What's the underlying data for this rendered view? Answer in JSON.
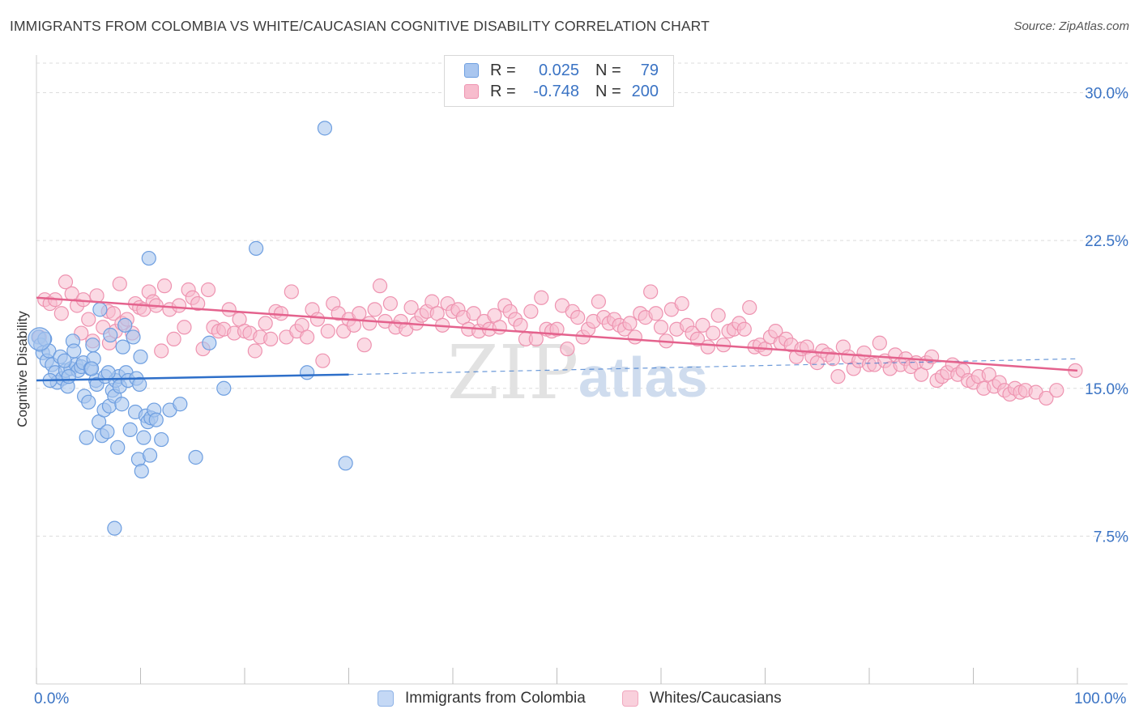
{
  "header": {
    "title": "IMMIGRANTS FROM COLOMBIA VS WHITE/CAUCASIAN COGNITIVE DISABILITY CORRELATION CHART",
    "source": "Source: ZipAtlas.com"
  },
  "legend": {
    "series": [
      {
        "r_label": "R =",
        "r_value": "0.025",
        "n_label": "N =",
        "n_value": "79"
      },
      {
        "r_label": "R =",
        "r_value": "-0.748",
        "n_label": "N =",
        "n_value": "200"
      }
    ],
    "bottom": [
      "Immigrants from Colombia",
      "Whites/Caucasians"
    ]
  },
  "watermark": {
    "zip": "ZIP",
    "atlas": "atlas"
  },
  "colors": {
    "blue_fill": "#a9c6ef",
    "blue_stroke": "#6d9ee0",
    "blue_line": "#2e6fc9",
    "pink_fill": "#f7bccd",
    "pink_stroke": "#ee93b0",
    "pink_line": "#e4628d",
    "tick_label": "#3a73c4",
    "grid": "#dcdcdc"
  },
  "chart_data": {
    "type": "scatter",
    "title": "IMMIGRANTS FROM COLOMBIA VS WHITE/CAUCASIAN COGNITIVE DISABILITY CORRELATION CHART",
    "ylabel": "Cognitive Disability",
    "xlabel": "",
    "x_tick_labels": [
      "0.0%",
      "100.0%"
    ],
    "y_tick_labels": [
      "7.5%",
      "15.0%",
      "22.5%",
      "30.0%"
    ],
    "y_ticks": [
      7.5,
      15.0,
      22.5,
      30.0
    ],
    "xlim": [
      0,
      100
    ],
    "ylim": [
      0,
      31.5
    ],
    "grid": "horizontal dashed",
    "series": [
      {
        "name": "Immigrants from Colombia",
        "color": "#6d9ee0",
        "trend": {
          "x": [
            0,
            30
          ],
          "y": [
            15.4,
            15.7
          ],
          "dashed_to": [
            100,
            16.5
          ]
        },
        "points": [
          [
            0.2,
            17.6
          ],
          [
            0.4,
            17.2
          ],
          [
            0.6,
            16.8
          ],
          [
            0.8,
            17.5
          ],
          [
            1.0,
            16.4
          ],
          [
            1.2,
            16.9
          ],
          [
            1.5,
            16.2
          ],
          [
            1.8,
            15.8
          ],
          [
            2.0,
            15.3
          ],
          [
            2.3,
            16.6
          ],
          [
            2.5,
            15.5
          ],
          [
            2.8,
            15.9
          ],
          [
            3.0,
            15.1
          ],
          [
            3.3,
            16.0
          ],
          [
            3.5,
            17.4
          ],
          [
            3.6,
            16.9
          ],
          [
            3.8,
            16.2
          ],
          [
            4.0,
            15.9
          ],
          [
            4.3,
            16.1
          ],
          [
            4.5,
            16.3
          ],
          [
            4.6,
            14.6
          ],
          [
            4.8,
            12.5
          ],
          [
            5.0,
            14.3
          ],
          [
            5.2,
            16.0
          ],
          [
            5.4,
            17.2
          ],
          [
            5.5,
            16.5
          ],
          [
            5.7,
            15.4
          ],
          [
            5.8,
            15.2
          ],
          [
            6.0,
            13.3
          ],
          [
            6.1,
            19.0
          ],
          [
            6.3,
            12.6
          ],
          [
            6.5,
            13.9
          ],
          [
            6.6,
            15.6
          ],
          [
            6.8,
            12.8
          ],
          [
            7.0,
            14.1
          ],
          [
            7.1,
            17.7
          ],
          [
            7.3,
            14.9
          ],
          [
            7.5,
            14.6
          ],
          [
            7.6,
            15.4
          ],
          [
            7.8,
            12.0
          ],
          [
            7.5,
            7.9
          ],
          [
            7.9,
            15.6
          ],
          [
            8.0,
            15.1
          ],
          [
            8.3,
            17.1
          ],
          [
            8.5,
            18.2
          ],
          [
            8.6,
            15.8
          ],
          [
            8.8,
            15.4
          ],
          [
            9.0,
            12.9
          ],
          [
            9.3,
            17.6
          ],
          [
            9.5,
            13.8
          ],
          [
            9.6,
            15.5
          ],
          [
            9.8,
            11.4
          ],
          [
            10.0,
            16.6
          ],
          [
            10.1,
            10.8
          ],
          [
            10.3,
            12.5
          ],
          [
            10.5,
            13.6
          ],
          [
            10.7,
            13.3
          ],
          [
            10.9,
            11.6
          ],
          [
            11.0,
            13.5
          ],
          [
            11.3,
            13.9
          ],
          [
            10.8,
            21.6
          ],
          [
            12.0,
            12.4
          ],
          [
            12.8,
            13.9
          ],
          [
            13.8,
            14.2
          ],
          [
            15.3,
            11.5
          ],
          [
            16.6,
            17.3
          ],
          [
            18.0,
            15.0
          ],
          [
            21.1,
            22.1
          ],
          [
            26.0,
            15.8
          ],
          [
            27.7,
            28.2
          ],
          [
            29.7,
            11.2
          ],
          [
            1.3,
            15.4
          ],
          [
            2.7,
            16.4
          ],
          [
            6.9,
            15.8
          ],
          [
            8.2,
            14.2
          ],
          [
            3.1,
            15.6
          ],
          [
            5.3,
            16.0
          ],
          [
            9.9,
            15.2
          ],
          [
            11.5,
            13.4
          ]
        ]
      },
      {
        "name": "Whites/Caucasians",
        "color": "#ee93b0",
        "trend": {
          "x": [
            0,
            100
          ],
          "y": [
            19.6,
            15.9
          ]
        },
        "points": [
          [
            0.3,
            17.6
          ],
          [
            0.8,
            19.5
          ],
          [
            1.3,
            19.3
          ],
          [
            1.8,
            19.5
          ],
          [
            2.4,
            18.8
          ],
          [
            2.8,
            20.4
          ],
          [
            3.4,
            19.8
          ],
          [
            3.9,
            19.2
          ],
          [
            4.3,
            17.8
          ],
          [
            4.5,
            19.5
          ],
          [
            5.0,
            18.5
          ],
          [
            5.4,
            17.4
          ],
          [
            5.8,
            19.7
          ],
          [
            6.4,
            18.1
          ],
          [
            6.9,
            18.9
          ],
          [
            7.0,
            17.3
          ],
          [
            7.4,
            18.8
          ],
          [
            7.6,
            17.9
          ],
          [
            8.0,
            20.3
          ],
          [
            8.2,
            18.3
          ],
          [
            8.7,
            18.5
          ],
          [
            9.2,
            17.8
          ],
          [
            9.5,
            19.3
          ],
          [
            9.9,
            19.1
          ],
          [
            10.3,
            19.0
          ],
          [
            10.8,
            19.9
          ],
          [
            11.2,
            19.4
          ],
          [
            11.5,
            19.2
          ],
          [
            12.0,
            16.9
          ],
          [
            12.3,
            20.2
          ],
          [
            12.8,
            19.0
          ],
          [
            13.2,
            17.5
          ],
          [
            13.7,
            19.2
          ],
          [
            14.2,
            18.1
          ],
          [
            14.6,
            20.0
          ],
          [
            15.0,
            19.6
          ],
          [
            15.5,
            19.3
          ],
          [
            16.0,
            17.0
          ],
          [
            16.5,
            20.0
          ],
          [
            17.0,
            18.1
          ],
          [
            17.5,
            17.9
          ],
          [
            18.0,
            18.0
          ],
          [
            18.5,
            19.0
          ],
          [
            19.0,
            17.8
          ],
          [
            19.5,
            18.5
          ],
          [
            20.0,
            17.9
          ],
          [
            20.5,
            17.8
          ],
          [
            21.0,
            16.9
          ],
          [
            21.5,
            17.6
          ],
          [
            22.0,
            18.3
          ],
          [
            22.5,
            17.5
          ],
          [
            23.0,
            18.9
          ],
          [
            23.5,
            18.8
          ],
          [
            24.0,
            17.6
          ],
          [
            24.5,
            19.9
          ],
          [
            25.0,
            17.9
          ],
          [
            25.5,
            18.2
          ],
          [
            26.0,
            17.6
          ],
          [
            26.5,
            19.0
          ],
          [
            27.0,
            18.5
          ],
          [
            27.5,
            16.4
          ],
          [
            28.0,
            17.9
          ],
          [
            28.5,
            19.3
          ],
          [
            29.0,
            18.8
          ],
          [
            29.5,
            17.9
          ],
          [
            30.0,
            18.5
          ],
          [
            30.5,
            18.2
          ],
          [
            31.0,
            18.8
          ],
          [
            31.5,
            17.2
          ],
          [
            32.0,
            18.3
          ],
          [
            32.5,
            19.0
          ],
          [
            33.0,
            20.2
          ],
          [
            33.5,
            18.4
          ],
          [
            34.0,
            19.3
          ],
          [
            34.5,
            18.1
          ],
          [
            35.0,
            18.4
          ],
          [
            35.5,
            18.0
          ],
          [
            36.0,
            19.1
          ],
          [
            36.5,
            18.3
          ],
          [
            37.0,
            18.7
          ],
          [
            37.5,
            18.9
          ],
          [
            38.0,
            19.4
          ],
          [
            38.5,
            18.8
          ],
          [
            39.0,
            18.2
          ],
          [
            39.5,
            19.3
          ],
          [
            40.0,
            18.9
          ],
          [
            40.5,
            19.0
          ],
          [
            41.0,
            18.6
          ],
          [
            41.5,
            18.0
          ],
          [
            42.0,
            18.8
          ],
          [
            42.5,
            17.9
          ],
          [
            43.0,
            18.4
          ],
          [
            43.5,
            18.0
          ],
          [
            44.0,
            18.7
          ],
          [
            44.5,
            18.1
          ],
          [
            45.0,
            19.2
          ],
          [
            45.5,
            18.9
          ],
          [
            46.0,
            18.5
          ],
          [
            46.5,
            18.2
          ],
          [
            47.0,
            17.5
          ],
          [
            47.5,
            18.9
          ],
          [
            48.0,
            17.5
          ],
          [
            48.5,
            19.6
          ],
          [
            49.0,
            18.0
          ],
          [
            49.5,
            17.9
          ],
          [
            50.0,
            18.0
          ],
          [
            50.5,
            19.2
          ],
          [
            51.0,
            17.0
          ],
          [
            51.5,
            18.9
          ],
          [
            52.0,
            18.6
          ],
          [
            52.5,
            17.6
          ],
          [
            53.0,
            18.0
          ],
          [
            53.5,
            18.4
          ],
          [
            54.0,
            19.4
          ],
          [
            54.5,
            18.6
          ],
          [
            55.0,
            18.3
          ],
          [
            55.5,
            18.5
          ],
          [
            56.0,
            18.2
          ],
          [
            56.5,
            18.0
          ],
          [
            57.0,
            18.3
          ],
          [
            57.5,
            17.6
          ],
          [
            58.0,
            18.8
          ],
          [
            58.5,
            18.6
          ],
          [
            59.0,
            19.9
          ],
          [
            59.5,
            18.8
          ],
          [
            60.0,
            18.1
          ],
          [
            60.5,
            17.4
          ],
          [
            61.0,
            19.0
          ],
          [
            61.5,
            18.0
          ],
          [
            62.0,
            19.3
          ],
          [
            62.5,
            18.2
          ],
          [
            63.0,
            17.8
          ],
          [
            63.5,
            17.5
          ],
          [
            64.0,
            18.2
          ],
          [
            64.5,
            17.1
          ],
          [
            65.0,
            17.8
          ],
          [
            65.5,
            18.7
          ],
          [
            66.0,
            17.2
          ],
          [
            66.5,
            17.9
          ],
          [
            67.0,
            18.0
          ],
          [
            67.5,
            18.3
          ],
          [
            68.0,
            18.0
          ],
          [
            68.5,
            19.1
          ],
          [
            69.0,
            17.1
          ],
          [
            69.5,
            17.2
          ],
          [
            70.0,
            17.0
          ],
          [
            70.5,
            17.6
          ],
          [
            71.0,
            17.9
          ],
          [
            71.5,
            17.3
          ],
          [
            72.0,
            17.5
          ],
          [
            72.5,
            17.2
          ],
          [
            73.0,
            16.6
          ],
          [
            73.5,
            17.0
          ],
          [
            74.0,
            17.1
          ],
          [
            74.5,
            16.6
          ],
          [
            75.0,
            16.3
          ],
          [
            75.5,
            16.9
          ],
          [
            76.0,
            16.7
          ],
          [
            76.5,
            16.5
          ],
          [
            77.0,
            15.6
          ],
          [
            77.5,
            17.1
          ],
          [
            78.0,
            16.6
          ],
          [
            78.5,
            16.0
          ],
          [
            79.0,
            16.4
          ],
          [
            79.5,
            16.8
          ],
          [
            80.0,
            16.2
          ],
          [
            80.5,
            16.2
          ],
          [
            81.0,
            17.3
          ],
          [
            81.5,
            16.4
          ],
          [
            82.0,
            16.0
          ],
          [
            82.5,
            16.7
          ],
          [
            83.0,
            16.2
          ],
          [
            83.5,
            16.5
          ],
          [
            84.0,
            16.1
          ],
          [
            84.5,
            16.3
          ],
          [
            85.0,
            15.7
          ],
          [
            85.5,
            16.3
          ],
          [
            86.0,
            16.6
          ],
          [
            86.5,
            15.4
          ],
          [
            87.0,
            15.6
          ],
          [
            87.5,
            15.8
          ],
          [
            88.0,
            16.2
          ],
          [
            88.5,
            15.7
          ],
          [
            89.0,
            15.9
          ],
          [
            89.5,
            15.4
          ],
          [
            90.0,
            15.3
          ],
          [
            90.5,
            15.6
          ],
          [
            91.0,
            15.0
          ],
          [
            91.5,
            15.7
          ],
          [
            92.0,
            15.1
          ],
          [
            92.5,
            15.3
          ],
          [
            93.0,
            14.9
          ],
          [
            93.5,
            14.7
          ],
          [
            94.0,
            15.0
          ],
          [
            94.5,
            14.8
          ],
          [
            95.0,
            14.9
          ],
          [
            96.0,
            14.8
          ],
          [
            97.0,
            14.5
          ],
          [
            98.0,
            14.9
          ],
          [
            99.8,
            15.9
          ]
        ]
      }
    ]
  }
}
